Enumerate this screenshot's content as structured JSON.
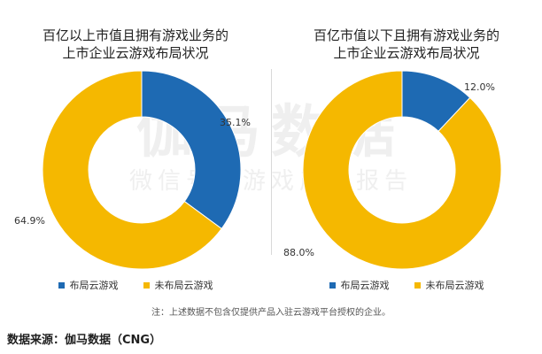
{
  "watermark": {
    "main": "伽马数据",
    "sub": "微信号：游戏产业报告"
  },
  "note": "注：上述数据不包含仅提供产品入驻云游戏平台授权的企业。",
  "source": "数据来源：伽马数据（CNG）",
  "colors": {
    "cloud": "#1e6ab3",
    "no_cloud": "#f5b800"
  },
  "chart_data": [
    {
      "type": "pie",
      "donut": true,
      "title_lines": [
        "百亿以上市值且拥有游戏业务的",
        "上市企业云游戏布局状况"
      ],
      "categories": [
        "布局云游戏",
        "未布局云游戏"
      ],
      "values": [
        35.1,
        64.9
      ],
      "labels": [
        "35.1%",
        "64.9%"
      ],
      "legend_position": "bottom"
    },
    {
      "type": "pie",
      "donut": true,
      "title_lines": [
        "百亿市值以下且拥有游戏业务的",
        "上市企业云游戏布局状况"
      ],
      "categories": [
        "布局云游戏",
        "未布局云游戏"
      ],
      "values": [
        12.0,
        88.0
      ],
      "labels": [
        "12.0%",
        "88.0%"
      ],
      "legend_position": "bottom"
    }
  ]
}
